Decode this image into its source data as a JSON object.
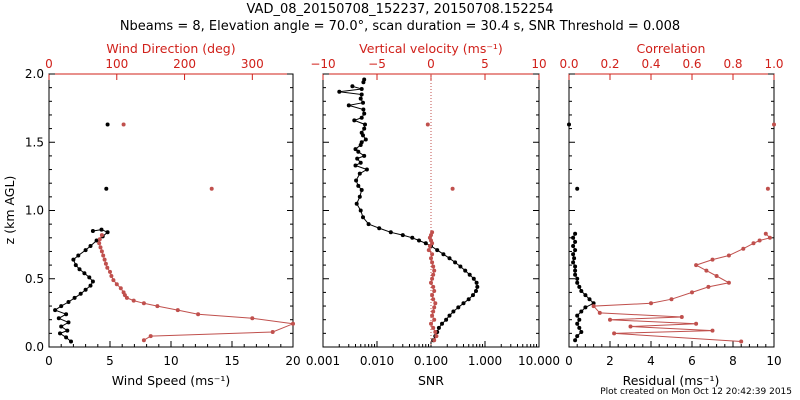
{
  "title": "VAD_08_20150708_152237, 20150708.152254",
  "subtitle": "Nbeams = 8, Elevation angle = 70.0°, scan duration = 30.4 s, SNR Threshold = 0.008",
  "footer": "Plot created on Mon Oct 12 20:42:39 2015",
  "colors": {
    "black": "#000000",
    "red": "#c0504d",
    "red_axis": "#d0201a"
  },
  "chart_data": [
    {
      "type": "scatter",
      "panel": "wind",
      "ylabel": "z (km AGL)",
      "ylim": [
        0,
        2
      ],
      "yticks": [
        "0.0",
        "0.5",
        "1.0",
        "1.5",
        "2.0"
      ],
      "xlabel": "Wind Speed (ms⁻¹)",
      "xlim": [
        0,
        20
      ],
      "xticks": [
        "0",
        "5",
        "10",
        "15",
        "20"
      ],
      "top_xlabel": "Wind Direction (deg)",
      "top_xlim": [
        0,
        360
      ],
      "top_xticks": [
        "0",
        "100",
        "200",
        "300"
      ],
      "series": [
        {
          "color": "black",
          "axis": "bottom",
          "x": [
            1.8,
            1.4,
            0.9,
            1.5,
            1.0,
            1.6,
            0.8,
            1.4,
            0.5,
            1.0,
            1.6,
            2.1,
            2.6,
            3.0,
            3.4,
            3.6,
            3.3,
            2.9,
            2.5,
            2.2,
            2.0,
            2.4,
            3.0,
            3.4,
            3.9,
            4.4,
            4.8,
            4.3,
            3.6,
            4.7,
            4.8
          ],
          "y": [
            0.04,
            0.07,
            0.1,
            0.12,
            0.15,
            0.18,
            0.21,
            0.24,
            0.27,
            0.3,
            0.33,
            0.36,
            0.39,
            0.42,
            0.45,
            0.48,
            0.51,
            0.54,
            0.57,
            0.6,
            0.64,
            0.67,
            0.71,
            0.74,
            0.78,
            0.81,
            0.84,
            0.86,
            0.85,
            1.16,
            1.63
          ]
        },
        {
          "color": "red",
          "axis": "top",
          "x": [
            140,
            150,
            330,
            360,
            300,
            220,
            190,
            160,
            140,
            125,
            115,
            112,
            110,
            106,
            100,
            95,
            92,
            90,
            86,
            84,
            82,
            80,
            78,
            76,
            74,
            75,
            78,
            240,
            110
          ],
          "y": [
            0.05,
            0.08,
            0.11,
            0.17,
            0.21,
            0.24,
            0.27,
            0.3,
            0.32,
            0.34,
            0.36,
            0.38,
            0.4,
            0.43,
            0.46,
            0.49,
            0.52,
            0.55,
            0.58,
            0.61,
            0.64,
            0.67,
            0.7,
            0.73,
            0.76,
            0.79,
            0.82,
            1.16,
            1.63
          ]
        }
      ]
    },
    {
      "type": "line",
      "panel": "snr",
      "ylim": [
        0,
        2
      ],
      "xlabel": "SNR",
      "xscale": "log",
      "xlim": [
        0.001,
        10
      ],
      "xticks": [
        "0.001",
        "0.010",
        "0.100",
        "1.000",
        "10.000"
      ],
      "top_xlabel": "Vertical velocity (ms⁻¹)",
      "top_xlim": [
        -10,
        10
      ],
      "top_xticks": [
        "−10",
        "−5",
        "0",
        "5",
        "10"
      ],
      "series": [
        {
          "color": "black",
          "axis": "bottom",
          "x": [
            0.11,
            0.12,
            0.13,
            0.14,
            0.16,
            0.19,
            0.22,
            0.26,
            0.32,
            0.4,
            0.5,
            0.6,
            0.68,
            0.72,
            0.7,
            0.62,
            0.52,
            0.43,
            0.35,
            0.28,
            0.22,
            0.17,
            0.13,
            0.1,
            0.08,
            0.06,
            0.045,
            0.03,
            0.018,
            0.011,
            0.007,
            0.0055,
            0.005,
            0.0042,
            0.0048,
            0.0052,
            0.0045,
            0.0041,
            0.0048,
            0.0065,
            0.004,
            0.005,
            0.0043,
            0.0058,
            0.0045,
            0.004,
            0.005,
            0.0052,
            0.0062,
            0.0055,
            0.0052,
            0.0058,
            0.006,
            0.0038,
            0.0052,
            0.0058,
            0.0056,
            0.003,
            0.0055,
            0.005,
            0.0052,
            0.002,
            0.0052,
            0.0035,
            0.0056,
            0.0058
          ],
          "y": [
            0.05,
            0.08,
            0.11,
            0.14,
            0.17,
            0.2,
            0.23,
            0.26,
            0.29,
            0.32,
            0.35,
            0.38,
            0.41,
            0.44,
            0.47,
            0.5,
            0.53,
            0.56,
            0.59,
            0.62,
            0.65,
            0.68,
            0.71,
            0.74,
            0.76,
            0.78,
            0.8,
            0.82,
            0.84,
            0.87,
            0.9,
            0.95,
            1.0,
            1.05,
            1.1,
            1.15,
            1.18,
            1.22,
            1.27,
            1.3,
            1.33,
            1.35,
            1.38,
            1.4,
            1.43,
            1.45,
            1.48,
            1.5,
            1.52,
            1.55,
            1.57,
            1.6,
            1.63,
            1.66,
            1.68,
            1.71,
            1.74,
            1.77,
            1.79,
            1.82,
            1.85,
            1.87,
            1.89,
            1.91,
            1.94,
            1.96
          ]
        },
        {
          "color": "red",
          "axis": "top",
          "x": [
            0.3,
            0.5,
            0.4,
            0.2,
            0.0,
            0.3,
            0.1,
            0.2,
            0.3,
            0.4,
            0.2,
            0.1,
            0.3,
            0.2,
            0.0,
            0.1,
            0.2,
            0.3,
            0.2,
            0.1,
            0.0,
            0.1,
            -0.2,
            -0.1,
            0.1,
            0.0,
            -0.1,
            0.0,
            0.1,
            2.0,
            -0.3
          ],
          "y": [
            0.05,
            0.08,
            0.11,
            0.14,
            0.17,
            0.2,
            0.23,
            0.26,
            0.29,
            0.32,
            0.35,
            0.38,
            0.41,
            0.44,
            0.47,
            0.5,
            0.53,
            0.56,
            0.59,
            0.62,
            0.65,
            0.68,
            0.71,
            0.74,
            0.76,
            0.78,
            0.8,
            0.82,
            0.84,
            1.16,
            1.63
          ]
        }
      ]
    },
    {
      "type": "scatter",
      "panel": "residual",
      "ylim": [
        0,
        2
      ],
      "xlabel": "Residual (ms⁻¹)",
      "xlim": [
        0,
        10
      ],
      "xticks": [
        "0",
        "2",
        "4",
        "6",
        "8",
        "10"
      ],
      "top_xlabel": "Correlation",
      "top_xlim": [
        0,
        1
      ],
      "top_xticks": [
        "0.0",
        "0.2",
        "0.4",
        "0.6",
        "0.8",
        "1.0"
      ],
      "series": [
        {
          "color": "black",
          "axis": "bottom",
          "x": [
            0.3,
            0.4,
            0.6,
            0.5,
            0.4,
            0.5,
            0.4,
            0.6,
            0.8,
            1.2,
            1.0,
            0.8,
            0.6,
            0.5,
            0.4,
            0.4,
            0.3,
            0.3,
            0.3,
            0.2,
            0.25,
            0.2,
            0.3,
            0.2,
            0.3,
            0.2,
            0.3,
            0.4,
            0.0
          ],
          "y": [
            0.05,
            0.08,
            0.11,
            0.14,
            0.17,
            0.2,
            0.23,
            0.26,
            0.29,
            0.32,
            0.35,
            0.38,
            0.41,
            0.44,
            0.47,
            0.5,
            0.53,
            0.56,
            0.59,
            0.62,
            0.65,
            0.68,
            0.71,
            0.74,
            0.77,
            0.8,
            0.83,
            1.16,
            1.63
          ]
        },
        {
          "color": "red",
          "axis": "top",
          "x": [
            0.84,
            0.22,
            0.7,
            0.3,
            0.62,
            0.2,
            0.55,
            0.15,
            0.12,
            0.4,
            0.5,
            0.6,
            0.68,
            0.78,
            0.72,
            0.67,
            0.62,
            0.7,
            0.78,
            0.85,
            0.9,
            0.93,
            0.98,
            0.96,
            0.97,
            1.0
          ],
          "y": [
            0.04,
            0.1,
            0.12,
            0.15,
            0.17,
            0.2,
            0.22,
            0.25,
            0.3,
            0.32,
            0.35,
            0.4,
            0.44,
            0.47,
            0.52,
            0.56,
            0.6,
            0.64,
            0.67,
            0.72,
            0.76,
            0.78,
            0.8,
            0.83,
            1.16,
            1.63
          ]
        }
      ]
    }
  ]
}
